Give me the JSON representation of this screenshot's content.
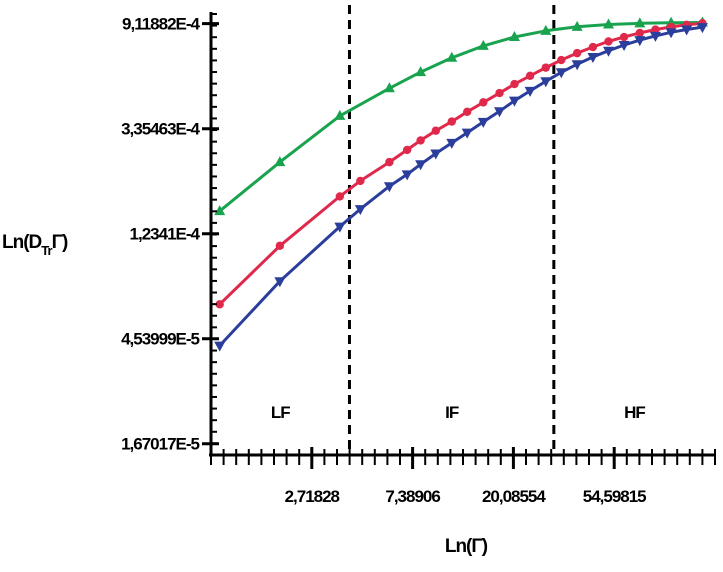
{
  "chart_data": {
    "type": "line",
    "title": "",
    "xlabel": "Ln(Γ)",
    "ylabel": {
      "main": "Ln(D",
      "sub": "Tr",
      "tail": "Γ)"
    },
    "x_scale": "log",
    "y_scale": "log",
    "xlim": [
      1.0,
      148.41
    ],
    "ylim": [
      1.5e-05,
      0.001
    ],
    "x_ticks": [
      {
        "value": 2.71828,
        "label": "2,71828"
      },
      {
        "value": 7.38906,
        "label": "7,38906"
      },
      {
        "value": 20.08554,
        "label": "20,08554"
      },
      {
        "value": 54.59815,
        "label": "54,59815"
      }
    ],
    "y_ticks": [
      {
        "value": 1.67017e-05,
        "label": "1,67017E-5"
      },
      {
        "value": 4.53999e-05,
        "label": "4,53999E-5"
      },
      {
        "value": 0.00012341,
        "label": "1,2341E-4"
      },
      {
        "value": 0.000335463,
        "label": "3,35463E-4"
      },
      {
        "value": 0.000911882,
        "label": "9,11882E-4"
      }
    ],
    "regions": [
      {
        "label": "LF",
        "x_from": 1.0,
        "x_to": 3.95
      },
      {
        "label": "IF",
        "x_from": 3.95,
        "x_to": 30.0
      },
      {
        "label": "HF",
        "x_from": 30.0,
        "x_to": 148.41
      }
    ],
    "boundaries": [
      3.95,
      30.0
    ],
    "series": [
      {
        "color": "#1aa34f",
        "marker": "triangle-up",
        "points": [
          [
            1.09,
            0.000153
          ],
          [
            1.98,
            0.000244
          ],
          [
            3.59,
            0.000379
          ],
          [
            5.87,
            0.000493
          ],
          [
            8.0,
            0.000575
          ],
          [
            10.9,
            0.000659
          ],
          [
            14.9,
            0.000738
          ],
          [
            20.3,
            0.000803
          ],
          [
            27.7,
            0.000852
          ],
          [
            37.8,
            0.000885
          ],
          [
            51.6,
            0.000905
          ],
          [
            70.4,
            0.000915
          ],
          [
            96.0,
            0.00092
          ],
          [
            131.0,
            0.000922
          ]
        ]
      },
      {
        "color": "#e0284a",
        "marker": "circle",
        "points": [
          [
            1.09,
            6.3e-05
          ],
          [
            1.98,
            0.00011
          ],
          [
            3.59,
            0.000176
          ],
          [
            4.4,
            0.000204
          ],
          [
            5.87,
            0.000244
          ],
          [
            7.0,
            0.000274
          ],
          [
            8.0,
            0.0003
          ],
          [
            9.3,
            0.000329
          ],
          [
            10.9,
            0.000359
          ],
          [
            12.7,
            0.000394
          ],
          [
            14.9,
            0.000431
          ],
          [
            17.5,
            0.000471
          ],
          [
            20.3,
            0.000513
          ],
          [
            23.7,
            0.000555
          ],
          [
            27.7,
            0.0006
          ],
          [
            32.3,
            0.000645
          ],
          [
            37.8,
            0.000689
          ],
          [
            44.2,
            0.00073
          ],
          [
            51.6,
            0.00077
          ],
          [
            60.2,
            0.000803
          ],
          [
            70.4,
            0.000835
          ],
          [
            82.2,
            0.000862
          ],
          [
            96.0,
            0.000884
          ],
          [
            112.0,
            0.000902
          ],
          [
            131.0,
            0.000916
          ]
        ]
      },
      {
        "color": "#2c3e9c",
        "marker": "triangle-down",
        "points": [
          [
            1.09,
            4.25e-05
          ],
          [
            1.98,
            7.85e-05
          ],
          [
            3.59,
            0.000132
          ],
          [
            4.4,
            0.000156
          ],
          [
            5.87,
            0.000194
          ],
          [
            7.0,
            0.000217
          ],
          [
            8.0,
            0.000239
          ],
          [
            9.3,
            0.000265
          ],
          [
            10.9,
            0.000293
          ],
          [
            12.7,
            0.000323
          ],
          [
            14.9,
            0.000358
          ],
          [
            17.5,
            0.000396
          ],
          [
            20.3,
            0.000438
          ],
          [
            23.7,
            0.000481
          ],
          [
            27.7,
            0.000527
          ],
          [
            32.3,
            0.000574
          ],
          [
            37.8,
            0.00062
          ],
          [
            44.2,
            0.000664
          ],
          [
            51.6,
            0.000705
          ],
          [
            60.2,
            0.000744
          ],
          [
            70.4,
            0.00078
          ],
          [
            82.2,
            0.000812
          ],
          [
            96.0,
            0.00084
          ],
          [
            112.0,
            0.000863
          ],
          [
            131.0,
            0.000882
          ]
        ]
      }
    ]
  }
}
